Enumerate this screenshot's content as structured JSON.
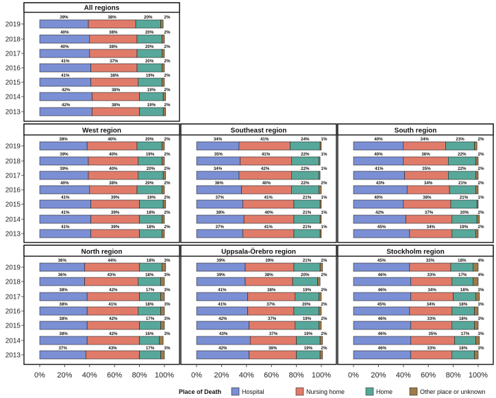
{
  "chart_data": {
    "type": "bar",
    "orientation": "horizontal",
    "stacked": true,
    "years": [
      "2019",
      "2018",
      "2017",
      "2016",
      "2015",
      "2014",
      "2013"
    ],
    "x_ticks": [
      "0%",
      "20%",
      "40%",
      "60%",
      "80%",
      "100%"
    ],
    "xlim": [
      0,
      100
    ],
    "legend": {
      "title": "Place of Death",
      "position": "bottom",
      "entries": [
        {
          "name": "Hospital",
          "color": "#7b8fd4"
        },
        {
          "name": "Nursing home",
          "color": "#e07b6a"
        },
        {
          "name": "Home",
          "color": "#57a89a"
        },
        {
          "name": "Other place or unknown",
          "color": "#a07a4a"
        }
      ]
    },
    "panels": [
      {
        "title": "All regions",
        "values": [
          [
            39,
            38,
            20,
            2
          ],
          [
            40,
            38,
            20,
            2
          ],
          [
            40,
            38,
            20,
            2
          ],
          [
            41,
            37,
            20,
            2
          ],
          [
            41,
            38,
            19,
            2
          ],
          [
            42,
            38,
            19,
            2
          ],
          [
            42,
            38,
            19,
            2
          ]
        ]
      },
      {
        "title": "West region",
        "values": [
          [
            38,
            40,
            20,
            2
          ],
          [
            39,
            40,
            19,
            2
          ],
          [
            39,
            40,
            20,
            2
          ],
          [
            40,
            38,
            20,
            2
          ],
          [
            41,
            39,
            19,
            2
          ],
          [
            41,
            39,
            18,
            2
          ],
          [
            41,
            39,
            18,
            2
          ]
        ]
      },
      {
        "title": "Southeast region",
        "values": [
          [
            34,
            41,
            24,
            1
          ],
          [
            35,
            41,
            22,
            1
          ],
          [
            34,
            42,
            22,
            1
          ],
          [
            36,
            40,
            22,
            2
          ],
          [
            37,
            41,
            21,
            1
          ],
          [
            38,
            40,
            21,
            1
          ],
          [
            37,
            41,
            21,
            1
          ]
        ]
      },
      {
        "title": "South region",
        "values": [
          [
            40,
            34,
            23,
            2
          ],
          [
            40,
            36,
            22,
            2
          ],
          [
            41,
            35,
            22,
            2
          ],
          [
            43,
            34,
            21,
            2
          ],
          [
            40,
            38,
            21,
            1
          ],
          [
            42,
            37,
            20,
            2
          ],
          [
            45,
            34,
            19,
            2
          ]
        ]
      },
      {
        "title": "North region",
        "values": [
          [
            36,
            44,
            18,
            3
          ],
          [
            36,
            43,
            18,
            3
          ],
          [
            38,
            42,
            17,
            3
          ],
          [
            38,
            41,
            18,
            3
          ],
          [
            38,
            42,
            17,
            3
          ],
          [
            38,
            42,
            16,
            3
          ],
          [
            37,
            43,
            17,
            3
          ]
        ]
      },
      {
        "title": "Uppsala-Örebro region",
        "values": [
          [
            39,
            39,
            21,
            2
          ],
          [
            39,
            38,
            20,
            2
          ],
          [
            41,
            38,
            19,
            2
          ],
          [
            41,
            37,
            20,
            2
          ],
          [
            42,
            37,
            19,
            2
          ],
          [
            43,
            37,
            19,
            2
          ],
          [
            42,
            38,
            19,
            2
          ]
        ]
      },
      {
        "title": "Stockholm region",
        "values": [
          [
            45,
            33,
            18,
            4
          ],
          [
            46,
            33,
            17,
            4
          ],
          [
            46,
            34,
            18,
            3
          ],
          [
            45,
            34,
            18,
            3
          ],
          [
            46,
            33,
            18,
            3
          ],
          [
            46,
            35,
            17,
            3
          ],
          [
            46,
            33,
            18,
            3
          ]
        ]
      }
    ]
  }
}
